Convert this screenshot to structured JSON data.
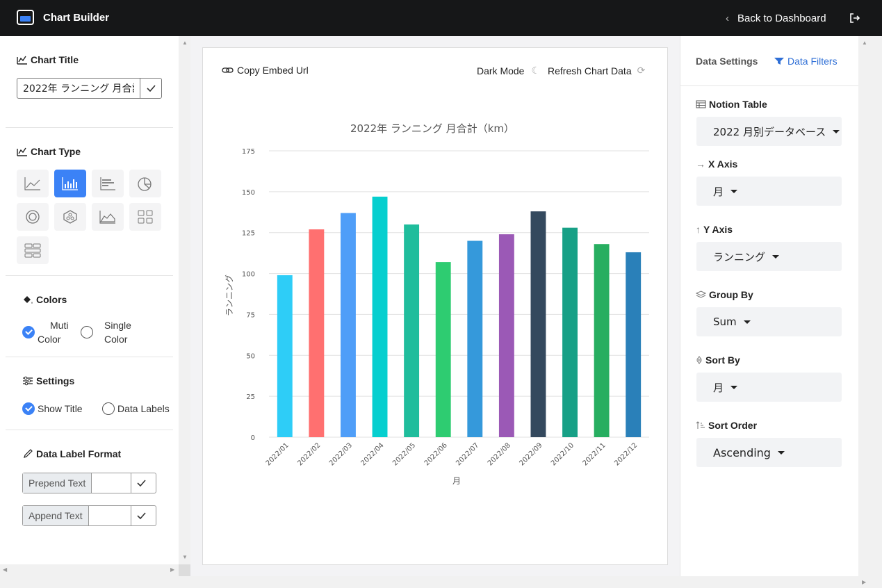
{
  "app": {
    "name": "Chart Builder",
    "back_label": "Back to Dashboard"
  },
  "left": {
    "chart_title_heading": "Chart Title",
    "chart_title_value": "2022年 ランニング 月合計（km）",
    "chart_type_heading": "Chart Type",
    "chart_types": [
      "line-chart-icon",
      "bar-chart-icon",
      "horizontal-bar-icon",
      "pie-chart-icon",
      "doughnut-icon",
      "radar-icon",
      "area-chart-icon",
      "grid-icon",
      "table-icon"
    ],
    "active_type": "bar-chart-icon",
    "colors_heading": "Colors",
    "color_options": {
      "multi_line1": "Muti",
      "multi_line2": "Color",
      "single_line1": "Single",
      "single_line2": "Color",
      "selected": "multi"
    },
    "settings_heading": "Settings",
    "settings": {
      "show_title": "Show Title",
      "data_labels": "Data Labels",
      "show_title_checked": true,
      "data_labels_checked": false
    },
    "data_label_heading": "Data Label Format",
    "prepend_label": "Prepend Text",
    "append_label": "Append Text"
  },
  "card": {
    "copy_embed": "Copy Embed Url",
    "dark_mode": "Dark Mode",
    "refresh": "Refresh Chart Data"
  },
  "right": {
    "tab_settings": "Data Settings",
    "tab_filters": "Data Filters",
    "notion_table_label": "Notion Table",
    "notion_table_value": "2022 月別データベース",
    "x_axis_label": "X Axis",
    "x_axis_value": "月",
    "y_axis_label": "Y Axis",
    "y_axis_value": "ランニング",
    "group_by_label": "Group By",
    "group_by_value": "Sum",
    "sort_by_label": "Sort By",
    "sort_by_value": "月",
    "sort_order_label": "Sort Order",
    "sort_order_value": "Ascending"
  },
  "chart_data": {
    "type": "bar",
    "title": "2022年 ランニング 月合計（km）",
    "xlabel": "月",
    "ylabel": "ランニング",
    "categories": [
      "2022/01",
      "2022/02",
      "2022/03",
      "2022/04",
      "2022/05",
      "2022/06",
      "2022/07",
      "2022/08",
      "2022/09",
      "2022/10",
      "2022/11",
      "2022/12"
    ],
    "values": [
      99,
      127,
      137,
      147,
      130,
      107,
      120,
      124,
      138,
      128,
      118,
      113
    ],
    "colors": [
      "#2ecdf7",
      "#ff7070",
      "#4f9ef8",
      "#06cfcf",
      "#1fbd9c",
      "#2ecc71",
      "#3599db",
      "#9b59b6",
      "#34495e",
      "#17a086",
      "#27ae60",
      "#2a80b9"
    ],
    "ylim": [
      0,
      175
    ],
    "yticks": [
      0,
      25,
      50,
      75,
      100,
      125,
      150,
      175
    ],
    "grid": true
  }
}
